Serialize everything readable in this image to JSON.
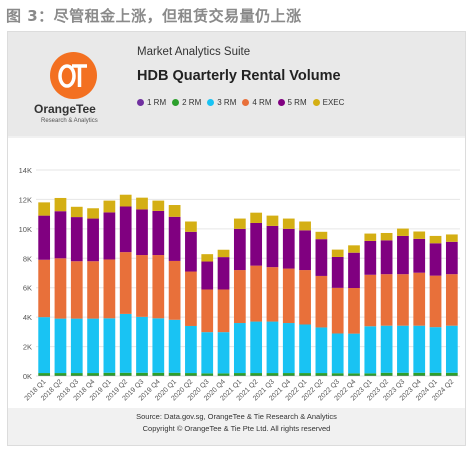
{
  "figure_label": "图 3：尽管租金上涨，但租赁交易量仍上涨",
  "header": {
    "logo_name": "OrangeTee",
    "logo_sub": "Research & Analytics",
    "suite": "Market Analytics Suite",
    "title": "HDB Quarterly Rental Volume"
  },
  "footer": {
    "source": "Source: Data.gov.sg, OrangeTee & Tie Research & Analytics",
    "copyright": "Copyright © OrangeTee & Tie Pte Ltd. All rights reserved"
  },
  "colors": {
    "1_rm": "#7030a0",
    "2_rm": "#2ca02c",
    "3_rm": "#19c3f3",
    "4_rm": "#e8703a",
    "5_rm": "#800080",
    "exec": "#d4af14",
    "brand": "#f37021"
  },
  "chart_data": {
    "type": "bar",
    "stacked": true,
    "title": "HDB Quarterly Rental Volume",
    "ylim": [
      0,
      14000
    ],
    "yticks": [
      0,
      2000,
      4000,
      6000,
      8000,
      10000,
      12000,
      14000
    ],
    "ytick_labels": [
      "0K",
      "2K",
      "4K",
      "6K",
      "8K",
      "10K",
      "12K",
      "14K"
    ],
    "grid": true,
    "legend_position": "top",
    "categories": [
      "2018 Q1",
      "2018 Q2",
      "2018 Q3",
      "2018 Q4",
      "2019 Q1",
      "2019 Q2",
      "2019 Q3",
      "2019 Q4",
      "2020 Q1",
      "2020 Q2",
      "2020 Q3",
      "2020 Q4",
      "2021 Q1",
      "2021 Q2",
      "2021 Q3",
      "2021 Q4",
      "2022 Q1",
      "2022 Q2",
      "2022 Q3",
      "2022 Q4",
      "2023 Q1",
      "2023 Q2",
      "2023 Q3",
      "2023 Q4",
      "2024 Q1",
      "2024 Q2"
    ],
    "x_tick_labels": [
      "2018 Q1",
      "2018 Q2",
      "2018 Q3",
      "2018 Q4",
      "2019 Q1",
      "2019 Q2",
      "2019 Q3",
      "2019 Q4",
      "2020 Q1",
      "2020 Q2",
      "2020 Q3",
      "2020 Q4",
      "2021 Q1",
      "2021 Q2",
      "2021 Q3",
      "2021 Q4",
      "2022 Q1",
      "2022 Q2",
      "2022 Q3",
      "2022 Q4",
      "2023 Q1",
      "2023 Q2",
      "2023 Q3",
      "2023 Q4",
      "2024 Q1",
      "2024 Q2"
    ],
    "series": [
      {
        "name": "1 RM",
        "color_key": "1_rm",
        "values": [
          20,
          20,
          20,
          20,
          20,
          20,
          20,
          20,
          20,
          20,
          20,
          20,
          20,
          20,
          20,
          20,
          20,
          20,
          20,
          20,
          20,
          20,
          20,
          20,
          20,
          20
        ]
      },
      {
        "name": "2 RM",
        "color_key": "2_rm",
        "values": [
          180,
          180,
          180,
          180,
          200,
          200,
          200,
          200,
          200,
          180,
          160,
          160,
          180,
          180,
          180,
          180,
          180,
          180,
          170,
          160,
          160,
          200,
          200,
          200,
          200,
          200
        ]
      },
      {
        "name": "3 RM",
        "color_key": "3_rm",
        "values": [
          3800,
          3700,
          3700,
          3700,
          3700,
          4000,
          3800,
          3700,
          3600,
          3200,
          2800,
          2800,
          3400,
          3500,
          3500,
          3400,
          3300,
          3100,
          2700,
          2700,
          3200,
          3200,
          3200,
          3200,
          3100,
          3200
        ]
      },
      {
        "name": "4 RM",
        "color_key": "4_rm",
        "values": [
          3900,
          4100,
          3900,
          3900,
          4000,
          4200,
          4200,
          4300,
          4000,
          3700,
          2900,
          2900,
          3600,
          3800,
          3700,
          3700,
          3700,
          3500,
          3100,
          3100,
          3500,
          3500,
          3500,
          3600,
          3500,
          3500
        ]
      },
      {
        "name": "5 RM",
        "color_key": "5_rm",
        "values": [
          3000,
          3200,
          3000,
          2900,
          3200,
          3100,
          3100,
          3000,
          3000,
          2700,
          1900,
          2200,
          2800,
          2900,
          2800,
          2700,
          2700,
          2500,
          2100,
          2400,
          2300,
          2300,
          2600,
          2300,
          2200,
          2200
        ]
      },
      {
        "name": "EXEC",
        "color_key": "exec",
        "values": [
          900,
          900,
          700,
          700,
          800,
          800,
          800,
          700,
          800,
          700,
          500,
          500,
          700,
          700,
          700,
          700,
          600,
          500,
          500,
          500,
          500,
          500,
          500,
          500,
          500,
          500
        ]
      }
    ]
  }
}
